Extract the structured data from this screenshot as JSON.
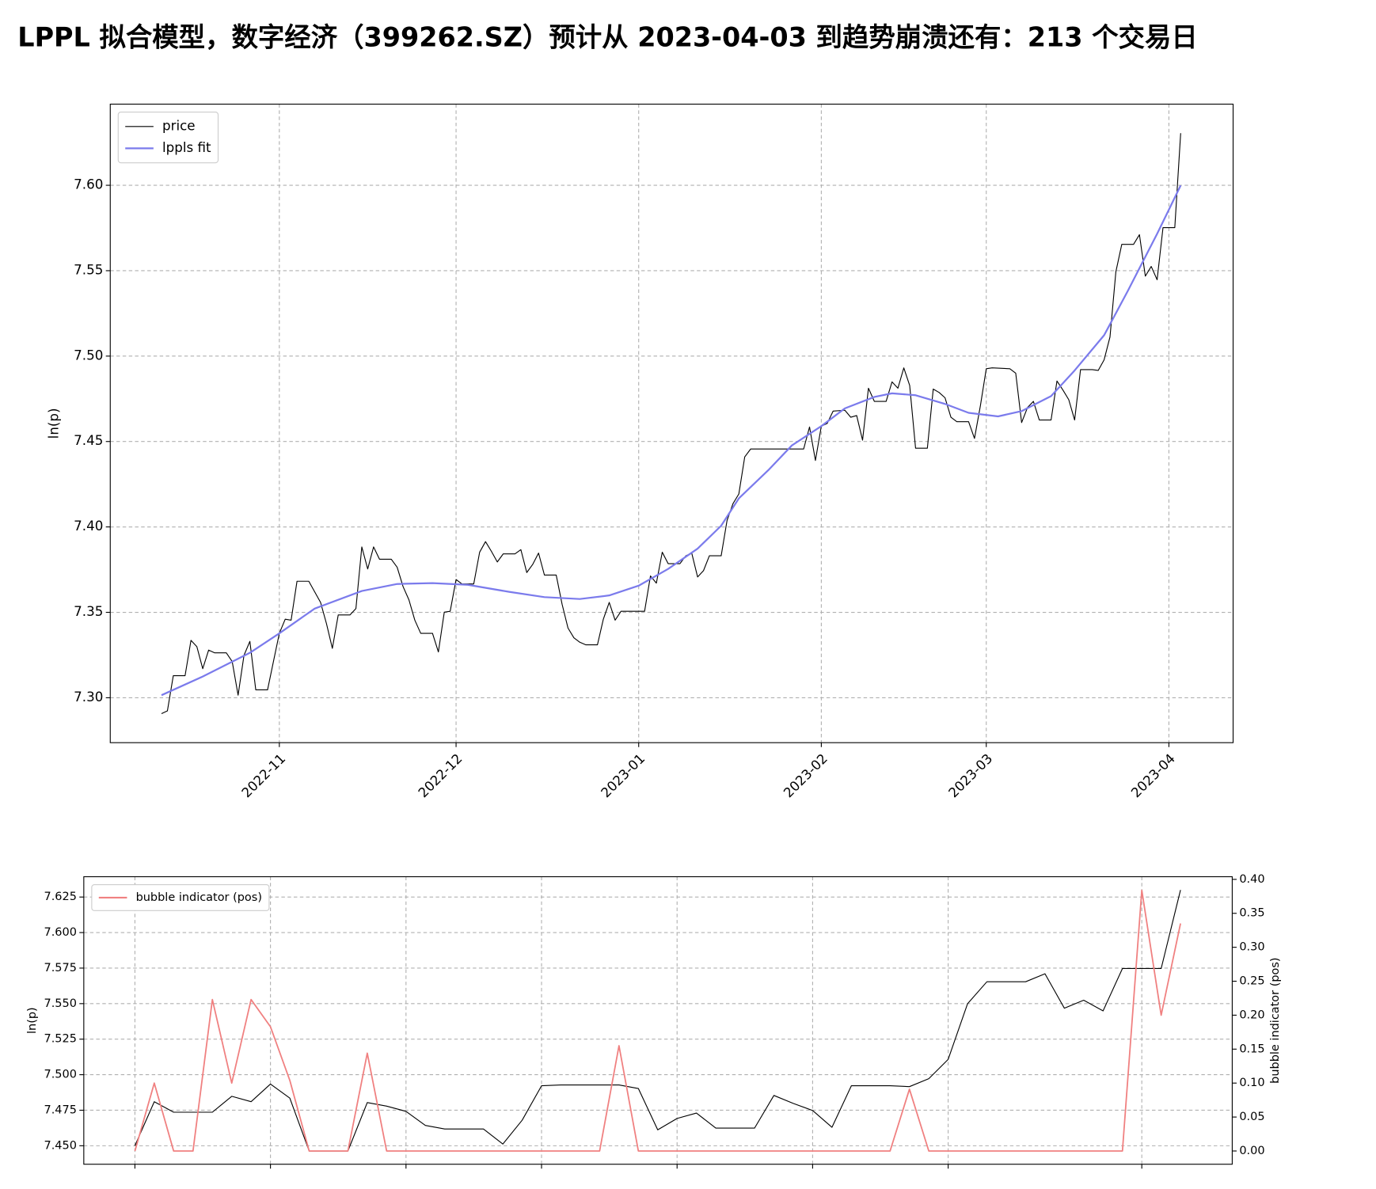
{
  "heading": "LPPL 拟合模型，数字经济（399262.SZ）预计从 2023-04-03 到趋势崩溃还有：213 个交易日",
  "chart_data": [
    {
      "type": "line",
      "ylabel": "ln(p)",
      "grid": true,
      "legend": "upper left",
      "xlim": [
        -8.7,
        181.9
      ],
      "ylim": [
        7.2737,
        7.6475
      ],
      "xticks": [
        {
          "value": 20,
          "label": "2022-11"
        },
        {
          "value": 50,
          "label": "2022-12"
        },
        {
          "value": 81,
          "label": "2023-01"
        },
        {
          "value": 112,
          "label": "2023-02"
        },
        {
          "value": 140,
          "label": "2023-03"
        },
        {
          "value": 171,
          "label": "2023-04"
        }
      ],
      "yticks": [
        {
          "value": 7.3,
          "label": "7.30"
        },
        {
          "value": 7.35,
          "label": "7.35"
        },
        {
          "value": 7.4,
          "label": "7.40"
        },
        {
          "value": 7.45,
          "label": "7.45"
        },
        {
          "value": 7.5,
          "label": "7.50"
        },
        {
          "value": 7.55,
          "label": "7.55"
        },
        {
          "value": 7.6,
          "label": "7.60"
        }
      ],
      "series": [
        {
          "name": "price",
          "color": "#000000",
          "x": [
            0,
            1,
            2,
            4,
            5,
            6,
            7,
            8,
            9,
            11,
            12,
            13,
            14,
            15,
            16,
            18,
            19,
            20,
            21,
            22,
            23,
            25,
            27,
            28,
            29,
            30,
            32,
            33,
            34,
            35,
            36,
            37,
            39,
            40,
            41,
            42,
            43,
            44,
            46,
            47,
            48,
            49,
            50,
            51,
            53,
            54,
            55,
            56,
            57,
            58,
            60,
            61,
            62,
            63,
            64,
            65,
            67,
            68,
            69,
            70,
            71,
            72,
            74,
            75,
            76,
            77,
            78,
            82,
            83,
            84,
            85,
            86,
            88,
            89,
            90,
            91,
            92,
            93,
            95,
            96,
            97,
            98,
            99,
            100,
            109,
            110,
            111,
            112,
            113,
            114,
            116,
            117,
            118,
            119,
            120,
            121,
            123,
            124,
            125,
            126,
            127,
            128,
            130,
            131,
            132,
            133,
            134,
            135,
            137,
            138,
            139,
            140,
            141,
            144,
            145,
            146,
            147,
            148,
            149,
            151,
            152,
            153,
            154,
            155,
            156,
            158,
            159,
            160,
            161,
            162,
            163,
            165,
            166,
            167,
            168,
            169,
            170,
            172,
            173
          ],
          "values": [
            7.2907,
            7.2923,
            7.3129,
            7.3129,
            7.3336,
            7.3299,
            7.317,
            7.3279,
            7.3263,
            7.3263,
            7.3212,
            7.3015,
            7.3248,
            7.333,
            7.3046,
            7.3046,
            7.3212,
            7.3377,
            7.346,
            7.3454,
            7.3682,
            7.3682,
            7.3558,
            7.3434,
            7.3289,
            7.3485,
            7.3485,
            7.3522,
            7.3883,
            7.3754,
            7.3883,
            7.3811,
            7.3811,
            7.3764,
            7.3651,
            7.3573,
            7.3454,
            7.3377,
            7.3377,
            7.3268,
            7.3501,
            7.3506,
            7.3692,
            7.3666,
            7.3666,
            7.3852,
            7.3914,
            7.3857,
            7.3795,
            7.3842,
            7.3842,
            7.3867,
            7.3733,
            7.378,
            7.3847,
            7.3718,
            7.3718,
            7.3547,
            7.3408,
            7.3351,
            7.3325,
            7.331,
            7.331,
            7.346,
            7.3558,
            7.3454,
            7.3506,
            7.3506,
            7.3713,
            7.3671,
            7.3852,
            7.3785,
            7.3785,
            7.3831,
            7.3847,
            7.3707,
            7.3744,
            7.3831,
            7.3831,
            7.4038,
            7.4136,
            7.4193,
            7.441,
            7.4456,
            7.4456,
            7.4585,
            7.4389,
            7.459,
            7.4606,
            7.4678,
            7.4683,
            7.4642,
            7.4652,
            7.4508,
            7.4812,
            7.4735,
            7.4735,
            7.4849,
            7.4812,
            7.4931,
            7.4828,
            7.4461,
            7.4461,
            7.4807,
            7.4787,
            7.4756,
            7.4642,
            7.4616,
            7.4616,
            7.4518,
            7.4709,
            7.4926,
            7.4931,
            7.4926,
            7.49,
            7.4611,
            7.4699,
            7.4735,
            7.4626,
            7.4626,
            7.4854,
            7.4802,
            7.4745,
            7.4626,
            7.4921,
            7.4921,
            7.4916,
            7.4978,
            7.5112,
            7.5494,
            7.5654,
            7.5654,
            7.5711,
            7.5468,
            7.5525,
            7.5447,
            7.5752,
            7.5752,
            7.6305
          ]
        },
        {
          "name": "lppls fit",
          "color": "#7b7bec",
          "x": [
            0,
            7,
            15,
            20,
            26,
            34,
            40,
            46,
            52,
            59,
            65,
            71,
            76,
            81,
            86,
            91,
            95,
            98,
            103,
            107,
            112,
            116,
            121,
            124,
            128,
            133,
            137,
            142,
            146,
            151,
            155,
            160,
            164,
            169,
            173
          ],
          "values": [
            7.3015,
            7.3124,
            7.3263,
            7.3377,
            7.3522,
            7.3625,
            7.3666,
            7.3671,
            7.3661,
            7.362,
            7.3589,
            7.3578,
            7.3599,
            7.3656,
            7.3754,
            7.3873,
            7.4007,
            7.4167,
            7.4332,
            7.4477,
            7.459,
            7.4694,
            7.4761,
            7.4782,
            7.4771,
            7.472,
            7.4668,
            7.4647,
            7.4678,
            7.4766,
            7.4916,
            7.5122,
            7.538,
            7.5716,
            7.5999
          ]
        }
      ]
    },
    {
      "type": "line",
      "ylabel": "ln(p)",
      "y2label": "bubble indicator (pos)",
      "grid": true,
      "legend": "upper left",
      "xlim": [
        -2.64,
        56.67
      ],
      "ylim": [
        7.437,
        7.6393
      ],
      "y2lim": [
        -0.0195,
        0.4039
      ],
      "xticks": [
        0,
        7,
        14,
        21,
        28,
        35,
        42,
        52
      ],
      "yticks": [
        {
          "value": 7.45,
          "label": "7.450"
        },
        {
          "value": 7.475,
          "label": "7.475"
        },
        {
          "value": 7.5,
          "label": "7.500"
        },
        {
          "value": 7.525,
          "label": "7.525"
        },
        {
          "value": 7.55,
          "label": "7.550"
        },
        {
          "value": 7.575,
          "label": "7.575"
        },
        {
          "value": 7.6,
          "label": "7.600"
        },
        {
          "value": 7.625,
          "label": "7.625"
        }
      ],
      "y2ticks": [
        {
          "value": 0,
          "label": "0.00"
        },
        {
          "value": 0.05,
          "label": "0.05"
        },
        {
          "value": 0.1,
          "label": "0.10"
        },
        {
          "value": 0.15,
          "label": "0.15"
        },
        {
          "value": 0.2,
          "label": "0.20"
        },
        {
          "value": 0.25,
          "label": "0.25"
        },
        {
          "value": 0.3,
          "label": "0.30"
        },
        {
          "value": 0.35,
          "label": "0.35"
        },
        {
          "value": 0.4,
          "label": "0.40"
        }
      ],
      "series": [
        {
          "color": "#000000",
          "x": [
            0,
            1,
            2,
            3,
            4,
            5,
            6,
            7,
            8,
            9,
            10,
            11,
            12,
            13,
            14,
            15,
            16,
            17,
            18,
            19,
            20,
            21,
            22,
            23,
            24,
            25,
            26,
            27,
            28,
            29,
            30,
            31,
            32,
            33,
            34,
            35,
            36,
            37,
            38,
            39,
            40,
            41,
            42,
            43,
            44,
            45,
            46,
            47,
            48,
            49,
            50,
            51,
            52,
            53,
            54
          ],
          "values": [
            7.45,
            7.481,
            7.4736,
            7.4736,
            7.4736,
            7.4848,
            7.481,
            7.4934,
            7.4835,
            7.4463,
            7.4463,
            7.4463,
            7.4804,
            7.4779,
            7.4742,
            7.4643,
            7.4618,
            7.4618,
            7.4618,
            7.4512,
            7.468,
            7.4922,
            7.4928,
            7.4928,
            7.4928,
            7.4928,
            7.4903,
            7.4612,
            7.4692,
            7.473,
            7.4624,
            7.4624,
            7.4624,
            7.4854,
            7.4798,
            7.4748,
            7.463,
            7.4922,
            7.4922,
            7.4922,
            7.4916,
            7.4972,
            7.5108,
            7.5499,
            7.5654,
            7.5654,
            7.5654,
            7.571,
            7.5468,
            7.5524,
            7.5449,
            7.5747,
            7.5747,
            7.5747,
            7.63
          ]
        },
        {
          "name": "bubble indicator (pos)",
          "color": "#f08080",
          "axis": "y2",
          "x": [
            0,
            1,
            2,
            3,
            4,
            5,
            6,
            7,
            8,
            9,
            10,
            11,
            12,
            13,
            14,
            15,
            16,
            17,
            18,
            19,
            20,
            21,
            22,
            23,
            24,
            25,
            26,
            27,
            28,
            29,
            30,
            31,
            32,
            33,
            34,
            35,
            36,
            37,
            38,
            39,
            40,
            41,
            42,
            43,
            44,
            45,
            46,
            47,
            48,
            49,
            50,
            51,
            52,
            53,
            54
          ],
          "values": [
            0,
            0.1,
            0,
            0,
            0.223,
            0.1,
            0.223,
            0.183,
            0.104,
            0,
            0,
            0,
            0.144,
            0,
            0,
            0,
            0,
            0,
            0,
            0,
            0,
            0,
            0,
            0,
            0,
            0.155,
            0,
            0,
            0,
            0,
            0,
            0,
            0,
            0,
            0,
            0,
            0,
            0,
            0,
            0,
            0.091,
            0,
            0,
            0,
            0,
            0,
            0,
            0,
            0,
            0,
            0,
            0,
            0.384,
            0.2,
            0.335
          ]
        }
      ]
    }
  ]
}
